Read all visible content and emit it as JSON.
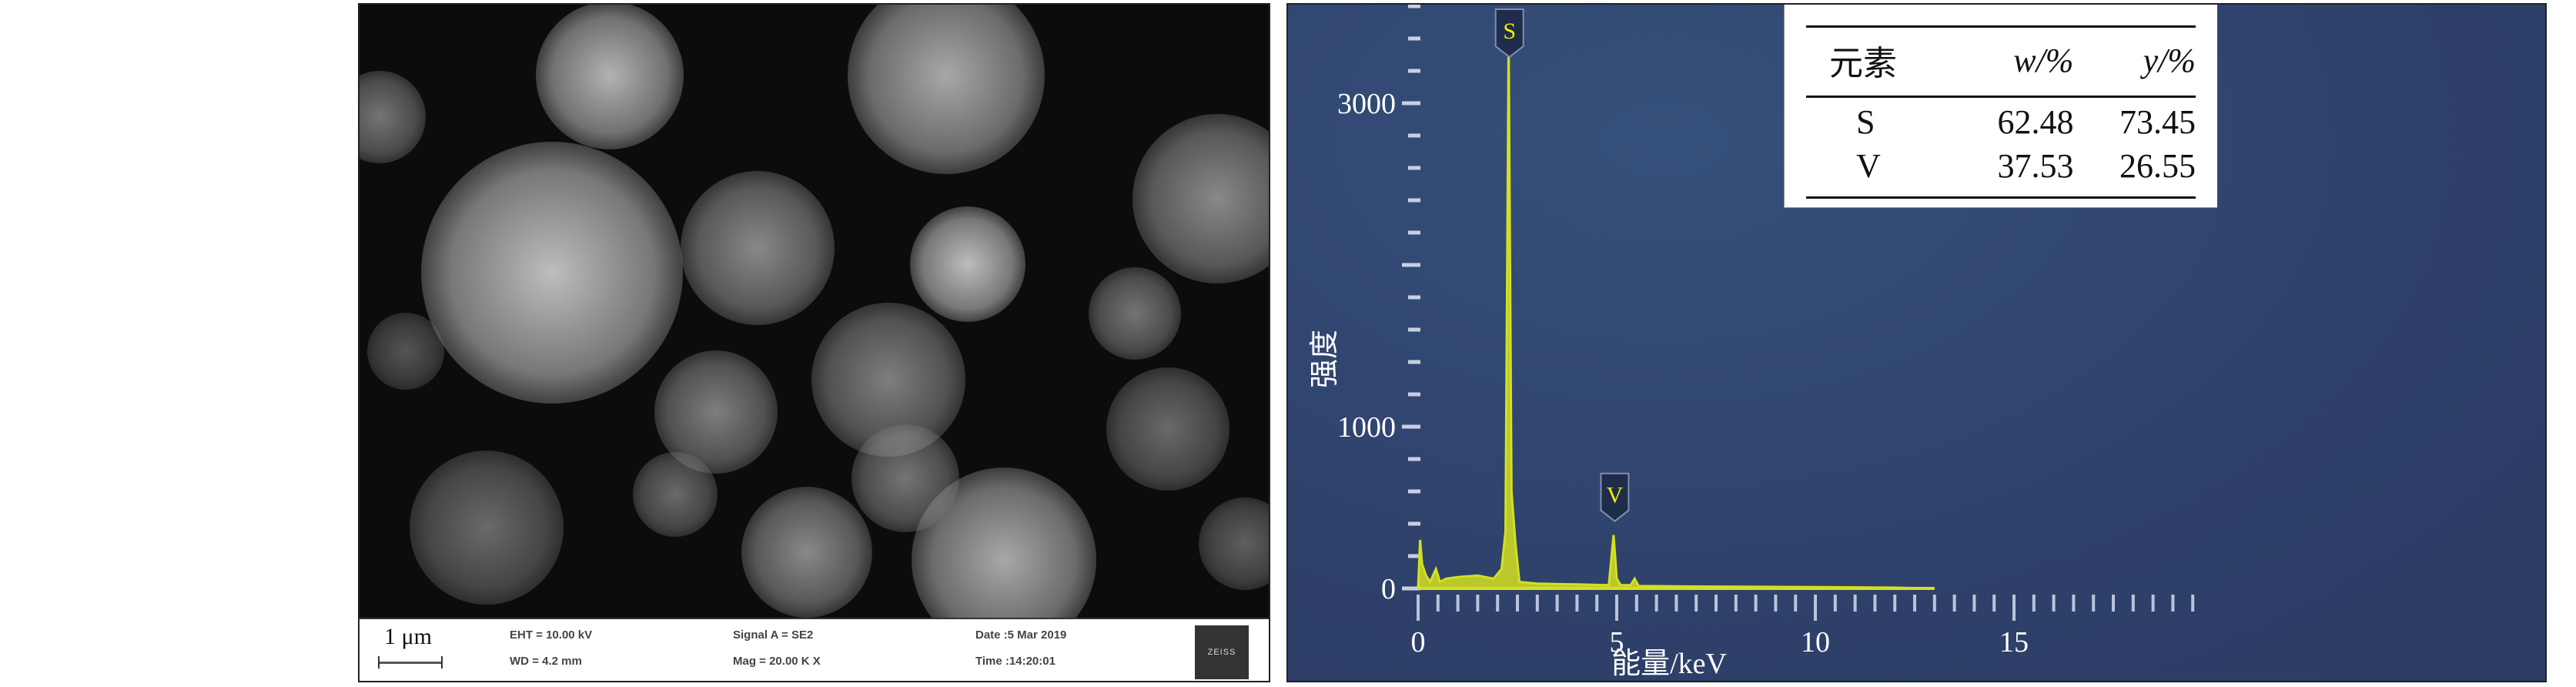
{
  "sem": {
    "scale_label": "1 μm",
    "info": {
      "eht": "EHT = 10.00 kV",
      "wd": "WD = 4.2 mm",
      "signal": "Signal A = SE2",
      "mag": "Mag =  20.00 K X",
      "date": "Date :5 Mar 2019",
      "time": "Time :14:20:01"
    },
    "logo": "ZEISS",
    "marker_color": "#4a62c8"
  },
  "table": {
    "headers": [
      "元素",
      "w/%",
      "y/%"
    ],
    "rows": [
      [
        "S",
        "62.48",
        "73.45"
      ],
      [
        "V",
        "37.53",
        "26.55"
      ]
    ]
  },
  "chart_data": {
    "type": "line",
    "xlabel": "能量/keV",
    "ylabel": "强度",
    "xlim": [
      0,
      20
    ],
    "ylim": [
      0,
      3600
    ],
    "x_ticks": [
      0,
      5,
      10,
      15
    ],
    "y_ticks": [
      0,
      1000,
      3000
    ],
    "color": "#d4e020",
    "peak_labels": [
      {
        "label": "S",
        "x": 2.3
      },
      {
        "label": "V",
        "x": 4.95
      }
    ],
    "points": [
      [
        0,
        0
      ],
      [
        0.05,
        300
      ],
      [
        0.1,
        150
      ],
      [
        0.2,
        80
      ],
      [
        0.3,
        40
      ],
      [
        0.45,
        120
      ],
      [
        0.55,
        40
      ],
      [
        0.7,
        60
      ],
      [
        1.0,
        70
      ],
      [
        1.5,
        80
      ],
      [
        1.9,
        60
      ],
      [
        2.1,
        120
      ],
      [
        2.2,
        350
      ],
      [
        2.28,
        3400
      ],
      [
        2.35,
        600
      ],
      [
        2.45,
        280
      ],
      [
        2.55,
        40
      ],
      [
        3.0,
        30
      ],
      [
        4.0,
        25
      ],
      [
        4.8,
        20
      ],
      [
        4.92,
        330
      ],
      [
        5.0,
        60
      ],
      [
        5.1,
        20
      ],
      [
        5.35,
        20
      ],
      [
        5.45,
        60
      ],
      [
        5.55,
        15
      ],
      [
        7,
        12
      ],
      [
        10,
        8
      ],
      [
        12,
        5
      ],
      [
        13,
        0
      ]
    ]
  }
}
